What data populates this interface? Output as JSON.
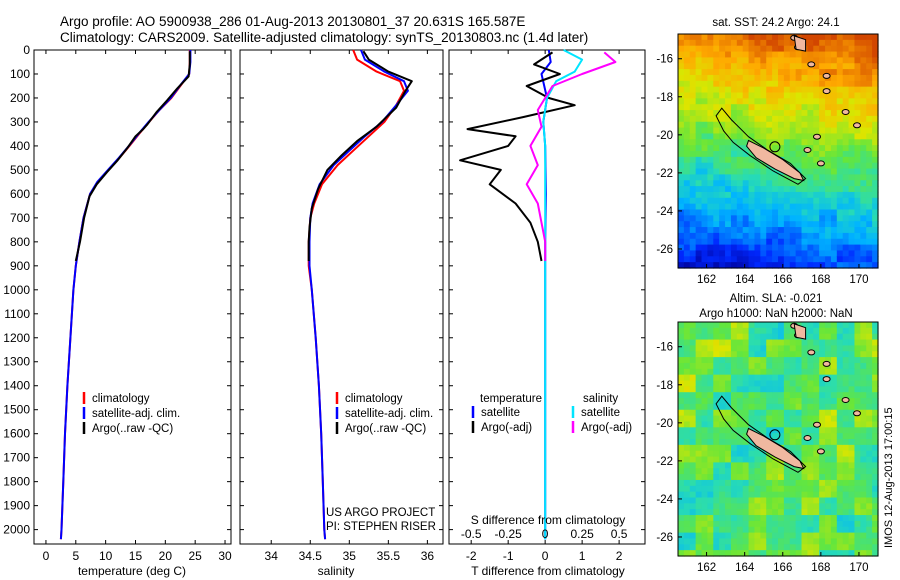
{
  "header": {
    "line1": "Argo profile: AO 5900938_286 01-Aug-2013 20130801_37 20.631S 165.587E",
    "line2": "Climatology: CARS2009. Satellite-adjusted climatology: synTS_20130803.nc (1.4d later)"
  },
  "legend": {
    "climatology": "climatology",
    "satellite": "satellite-adj. clim.",
    "argo": "Argo(..raw -QC)"
  },
  "diff_legend": {
    "temperature_head": "temperature",
    "salinity_head": "salinity",
    "satellite": "satellite",
    "argo": "Argo(-adj)"
  },
  "project": {
    "line1": "US ARGO PROJECT",
    "line2": "PI: STEPHEN RISER"
  },
  "side_stamp": "IMOS 12-Aug-2013 17:00:15",
  "maps": {
    "sst": {
      "title": "sat. SST: 24.2 Argo: 24.1"
    },
    "sla": {
      "title_line1": "Altim. SLA: -0.021",
      "title_line2": "Argo h1000: NaN h2000: NaN"
    },
    "lon_ticks": [
      "162",
      "164",
      "166",
      "168",
      "170"
    ],
    "lat_ticks": [
      "-16",
      "-18",
      "-20",
      "-22",
      "-24",
      "-26"
    ],
    "lon_values": [
      162,
      164,
      166,
      168,
      170
    ],
    "lat_values": [
      -16,
      -18,
      -20,
      -22,
      -24,
      -26
    ],
    "lon_range": [
      160.5,
      171
    ],
    "lat_range": [
      -27,
      -14.7
    ],
    "argo_position": {
      "lon": 165.587,
      "lat": -20.631
    }
  },
  "colors": {
    "climatology": "#ff0000",
    "satellite": "#0000ff",
    "argo": "#000000",
    "sal_satellite": "#00e5ff",
    "sal_argo": "#ff00ff",
    "land": "#f0b8a0"
  },
  "chart_data": [
    {
      "type": "line",
      "name": "temperature",
      "xlabel": "temperature (deg C)",
      "ylabel": "",
      "xlim": [
        -2,
        31
      ],
      "ylim": [
        2060,
        0
      ],
      "x_ticks": [
        0,
        5,
        10,
        15,
        20,
        25,
        30
      ],
      "x_tick_labels": [
        "0",
        "5",
        "10",
        "15",
        "20",
        "25",
        "30"
      ],
      "y_ticks": [
        0,
        100,
        200,
        300,
        400,
        500,
        600,
        700,
        800,
        900,
        1000,
        1100,
        1200,
        1300,
        1400,
        1500,
        1600,
        1700,
        1800,
        1900,
        2000
      ],
      "y_tick_labels": [
        "0",
        "100",
        "200",
        "300",
        "400",
        "500",
        "600",
        "700",
        "800",
        "900",
        "1000",
        "1100",
        "1200",
        "1300",
        "1400",
        "1500",
        "1600",
        "1700",
        "1800",
        "1900",
        "2000"
      ],
      "series": [
        {
          "name": "climatology",
          "color": "#ff0000",
          "points": [
            [
              24.1,
              0
            ],
            [
              24.1,
              50
            ],
            [
              24.0,
              100
            ],
            [
              22.5,
              150
            ],
            [
              21.0,
              200
            ],
            [
              19.0,
              250
            ],
            [
              17.3,
              300
            ],
            [
              15.6,
              350
            ],
            [
              14.0,
              400
            ],
            [
              12.3,
              450
            ],
            [
              10.5,
              500
            ],
            [
              8.7,
              550
            ],
            [
              7.4,
              600
            ],
            [
              6.3,
              700
            ],
            [
              5.6,
              800
            ],
            [
              5.0,
              900
            ],
            [
              4.6,
              1000
            ],
            [
              4.1,
              1200
            ],
            [
              3.6,
              1400
            ],
            [
              3.2,
              1600
            ],
            [
              2.9,
              1800
            ],
            [
              2.6,
              2000
            ],
            [
              2.5,
              2040
            ]
          ]
        },
        {
          "name": "satellite-adj. clim.",
          "color": "#0000ff",
          "points": [
            [
              24.2,
              0
            ],
            [
              24.2,
              50
            ],
            [
              24.0,
              100
            ],
            [
              22.4,
              150
            ],
            [
              20.9,
              200
            ],
            [
              19.0,
              250
            ],
            [
              17.2,
              300
            ],
            [
              15.5,
              350
            ],
            [
              13.9,
              400
            ],
            [
              12.2,
              450
            ],
            [
              10.4,
              500
            ],
            [
              8.6,
              550
            ],
            [
              7.4,
              600
            ],
            [
              6.3,
              700
            ],
            [
              5.6,
              800
            ],
            [
              5.0,
              900
            ],
            [
              4.6,
              1000
            ],
            [
              4.1,
              1200
            ],
            [
              3.6,
              1400
            ],
            [
              3.2,
              1600
            ],
            [
              2.9,
              1800
            ],
            [
              2.6,
              2000
            ],
            [
              2.5,
              2040
            ]
          ]
        },
        {
          "name": "Argo(..raw -QC)",
          "color": "#000000",
          "points": [
            [
              24.1,
              5
            ],
            [
              24.1,
              60
            ],
            [
              23.9,
              110
            ],
            [
              22.0,
              160
            ],
            [
              20.3,
              210
            ],
            [
              18.5,
              260
            ],
            [
              17.0,
              310
            ],
            [
              16.3,
              330
            ],
            [
              15.0,
              360
            ],
            [
              13.6,
              410
            ],
            [
              12.0,
              460
            ],
            [
              10.2,
              510
            ],
            [
              8.5,
              560
            ],
            [
              7.3,
              610
            ],
            [
              6.4,
              700
            ],
            [
              5.7,
              800
            ],
            [
              5.0,
              880
            ]
          ]
        }
      ]
    },
    {
      "type": "line",
      "name": "salinity",
      "xlabel": "salinity",
      "ylabel": "",
      "xlim": [
        33.6,
        36.2
      ],
      "ylim": [
        2060,
        0
      ],
      "x_ticks": [
        34,
        34.5,
        35,
        35.5,
        36
      ],
      "x_tick_labels": [
        "34",
        "34.5",
        "35",
        "35.5",
        "36"
      ],
      "series": [
        {
          "name": "climatology",
          "color": "#ff0000",
          "points": [
            [
              35.05,
              0
            ],
            [
              35.1,
              40
            ],
            [
              35.35,
              90
            ],
            [
              35.65,
              130
            ],
            [
              35.7,
              170
            ],
            [
              35.6,
              230
            ],
            [
              35.45,
              300
            ],
            [
              35.25,
              360
            ],
            [
              35.05,
              420
            ],
            [
              34.85,
              480
            ],
            [
              34.65,
              560
            ],
            [
              34.55,
              640
            ],
            [
              34.5,
              700
            ],
            [
              34.48,
              800
            ],
            [
              34.48,
              900
            ],
            [
              34.52,
              1000
            ],
            [
              34.57,
              1200
            ],
            [
              34.61,
              1400
            ],
            [
              34.64,
              1600
            ],
            [
              34.66,
              1800
            ],
            [
              34.68,
              2000
            ],
            [
              34.69,
              2040
            ]
          ]
        },
        {
          "name": "satellite-adj. clim.",
          "color": "#0000ff",
          "points": [
            [
              35.15,
              0
            ],
            [
              35.2,
              40
            ],
            [
              35.45,
              90
            ],
            [
              35.7,
              130
            ],
            [
              35.75,
              170
            ],
            [
              35.6,
              230
            ],
            [
              35.42,
              300
            ],
            [
              35.2,
              360
            ],
            [
              35.0,
              420
            ],
            [
              34.8,
              480
            ],
            [
              34.62,
              560
            ],
            [
              34.53,
              640
            ],
            [
              34.5,
              700
            ],
            [
              34.49,
              800
            ],
            [
              34.49,
              900
            ],
            [
              34.52,
              1000
            ],
            [
              34.57,
              1200
            ],
            [
              34.61,
              1400
            ],
            [
              34.64,
              1600
            ],
            [
              34.66,
              1800
            ],
            [
              34.68,
              2000
            ],
            [
              34.69,
              2040
            ]
          ]
        },
        {
          "name": "Argo(..raw -QC)",
          "color": "#000000",
          "points": [
            [
              35.18,
              5
            ],
            [
              35.25,
              40
            ],
            [
              35.5,
              90
            ],
            [
              35.8,
              130
            ],
            [
              35.72,
              170
            ],
            [
              35.6,
              240
            ],
            [
              35.35,
              320
            ],
            [
              35.1,
              380
            ],
            [
              34.9,
              440
            ],
            [
              34.72,
              500
            ],
            [
              34.6,
              580
            ],
            [
              34.52,
              660
            ],
            [
              34.49,
              740
            ],
            [
              34.48,
              800
            ],
            [
              34.48,
              880
            ]
          ]
        }
      ]
    },
    {
      "type": "line",
      "name": "differences",
      "xlabel": "T difference from climatology",
      "xlabel_top": "S difference from climatology",
      "ylabel": "",
      "xlim": [
        -2.6,
        2.7
      ],
      "ylim": [
        2060,
        0
      ],
      "x_ticks": [
        -2,
        -1,
        0,
        1,
        2
      ],
      "x_tick_labels": [
        "-2",
        "-1",
        "0",
        "1",
        "2"
      ],
      "x_ticks_salinity": [
        -0.5,
        -0.25,
        0,
        0.25,
        0.5
      ],
      "x_tick_labels_salinity": [
        "-0.5",
        "-0.25",
        "0",
        "0.25",
        "0.5"
      ],
      "series": [
        {
          "name": "temperature satellite",
          "color": "#0000ff",
          "points": [
            [
              0.1,
              0
            ],
            [
              0.15,
              50
            ],
            [
              -0.1,
              100
            ],
            [
              0.05,
              200
            ],
            [
              -0.05,
              300
            ],
            [
              0.0,
              400
            ],
            [
              0.02,
              600
            ],
            [
              0.0,
              800
            ],
            [
              0.0,
              1000
            ],
            [
              0.0,
              1500
            ],
            [
              0.0,
              2040
            ]
          ]
        },
        {
          "name": "temperature Argo(-adj)",
          "color": "#000000",
          "points": [
            [
              0.2,
              10
            ],
            [
              -0.3,
              60
            ],
            [
              0.4,
              100
            ],
            [
              -0.5,
              150
            ],
            [
              0.1,
              200
            ],
            [
              0.8,
              230
            ],
            [
              -0.6,
              280
            ],
            [
              -2.1,
              330
            ],
            [
              -0.8,
              360
            ],
            [
              -1.0,
              400
            ],
            [
              -2.3,
              460
            ],
            [
              -1.2,
              500
            ],
            [
              -1.5,
              560
            ],
            [
              -0.8,
              640
            ],
            [
              -0.4,
              720
            ],
            [
              -0.2,
              800
            ],
            [
              -0.1,
              880
            ]
          ]
        },
        {
          "name": "salinity satellite",
          "color": "#00e5ff",
          "points": [
            [
              0.5,
              0
            ],
            [
              1.0,
              40
            ],
            [
              0.8,
              90
            ],
            [
              0.3,
              130
            ],
            [
              0.05,
              200
            ],
            [
              -0.05,
              300
            ],
            [
              0.0,
              400
            ],
            [
              0.0,
              600
            ],
            [
              0.0,
              1000
            ],
            [
              0.0,
              2040
            ]
          ]
        },
        {
          "name": "salinity Argo(-adj)",
          "color": "#ff00ff",
          "points": [
            [
              1.6,
              10
            ],
            [
              1.9,
              50
            ],
            [
              1.0,
              100
            ],
            [
              0.2,
              150
            ],
            [
              -0.2,
              250
            ],
            [
              -0.1,
              320
            ],
            [
              -0.4,
              400
            ],
            [
              -0.2,
              480
            ],
            [
              -0.5,
              560
            ],
            [
              -0.2,
              640
            ],
            [
              -0.1,
              720
            ],
            [
              0.0,
              800
            ],
            [
              0.0,
              880
            ]
          ]
        }
      ]
    }
  ]
}
